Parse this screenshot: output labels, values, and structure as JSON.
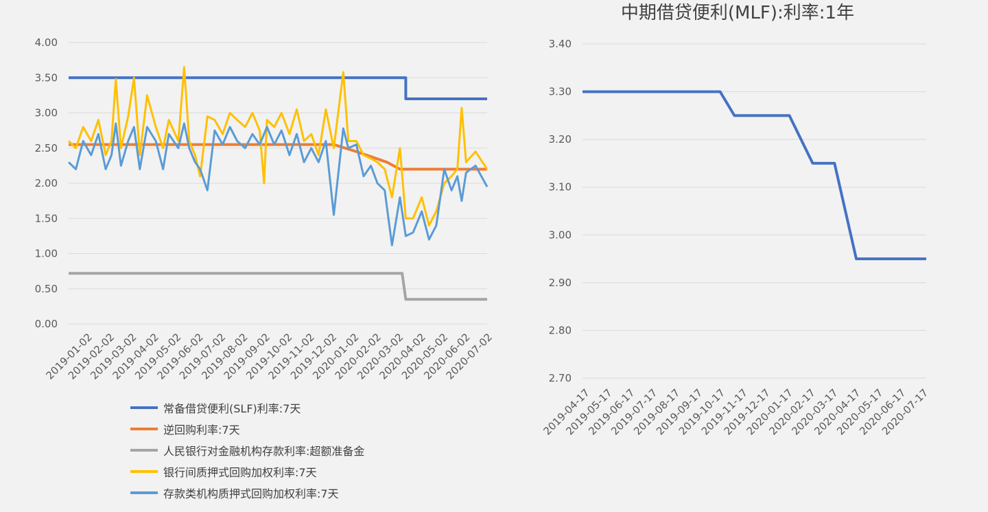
{
  "chart_data": [
    {
      "type": "line",
      "title": "",
      "xlabel": "",
      "ylabel": "",
      "ylim": [
        0,
        4
      ],
      "yticks": [
        "0.00",
        "0.50",
        "1.00",
        "1.50",
        "2.00",
        "2.50",
        "3.00",
        "3.50",
        "4.00"
      ],
      "xticks": [
        "2019-01-02",
        "2019-02-02",
        "2019-03-02",
        "2019-04-02",
        "2019-05-02",
        "2019-06-02",
        "2019-07-02",
        "2019-08-02",
        "2019-09-02",
        "2019-10-02",
        "2019-11-02",
        "2019-12-02",
        "2020-01-02",
        "2020-02-02",
        "2020-03-02",
        "2020-04-02",
        "2020-05-02",
        "2020-06-02",
        "2020-07-02"
      ],
      "grid": true,
      "legend_position": "bottom",
      "series": [
        {
          "name": "常备借贷便利(SLF)利率:7天",
          "color": "#4472c4",
          "points": [
            [
              "2019-01-02",
              3.5
            ],
            [
              "2020-04-10",
              3.5
            ],
            [
              "2020-04-10",
              3.2
            ],
            [
              "2020-07-31",
              3.2
            ]
          ]
        },
        {
          "name": "逆回购利率:7天",
          "color": "#ed7d31",
          "points": [
            [
              "2019-01-02",
              2.55
            ],
            [
              "2020-01-02",
              2.55
            ],
            [
              "2020-02-02",
              2.45
            ],
            [
              "2020-03-15",
              2.3
            ],
            [
              "2020-04-02",
              2.2
            ],
            [
              "2020-07-31",
              2.2
            ]
          ]
        },
        {
          "name": "人民银行对金融机构存款利率:超额准备金",
          "color": "#a5a5a5",
          "points": [
            [
              "2019-01-02",
              0.72
            ],
            [
              "2020-04-05",
              0.72
            ],
            [
              "2020-04-10",
              0.35
            ],
            [
              "2020-07-31",
              0.35
            ]
          ]
        },
        {
          "name": "银行间质押式回购加权利率:7天",
          "color": "#ffc000",
          "points": [
            [
              "2019-01-02",
              2.6
            ],
            [
              "2019-01-12",
              2.5
            ],
            [
              "2019-01-22",
              2.8
            ],
            [
              "2019-02-02",
              2.6
            ],
            [
              "2019-02-12",
              2.9
            ],
            [
              "2019-02-22",
              2.4
            ],
            [
              "2019-03-02",
              2.6
            ],
            [
              "2019-03-08",
              3.48
            ],
            [
              "2019-03-15",
              2.5
            ],
            [
              "2019-03-25",
              2.95
            ],
            [
              "2019-04-02",
              3.5
            ],
            [
              "2019-04-10",
              2.4
            ],
            [
              "2019-04-20",
              3.25
            ],
            [
              "2019-05-02",
              2.8
            ],
            [
              "2019-05-12",
              2.5
            ],
            [
              "2019-05-20",
              2.9
            ],
            [
              "2019-06-02",
              2.6
            ],
            [
              "2019-06-10",
              3.65
            ],
            [
              "2019-06-17",
              2.6
            ],
            [
              "2019-06-25",
              2.4
            ],
            [
              "2019-07-02",
              2.1
            ],
            [
              "2019-07-12",
              2.95
            ],
            [
              "2019-07-22",
              2.9
            ],
            [
              "2019-08-02",
              2.7
            ],
            [
              "2019-08-12",
              3.0
            ],
            [
              "2019-08-22",
              2.9
            ],
            [
              "2019-09-02",
              2.8
            ],
            [
              "2019-09-12",
              3.0
            ],
            [
              "2019-09-22",
              2.75
            ],
            [
              "2019-09-28",
              2.0
            ],
            [
              "2019-10-02",
              2.9
            ],
            [
              "2019-10-12",
              2.8
            ],
            [
              "2019-10-22",
              3.0
            ],
            [
              "2019-11-02",
              2.7
            ],
            [
              "2019-11-12",
              3.05
            ],
            [
              "2019-11-22",
              2.6
            ],
            [
              "2019-12-02",
              2.7
            ],
            [
              "2019-12-12",
              2.4
            ],
            [
              "2019-12-22",
              3.05
            ],
            [
              "2020-01-02",
              2.5
            ],
            [
              "2020-01-15",
              3.58
            ],
            [
              "2020-01-22",
              2.6
            ],
            [
              "2020-02-02",
              2.6
            ],
            [
              "2020-02-12",
              2.4
            ],
            [
              "2020-02-22",
              2.35
            ],
            [
              "2020-03-02",
              2.3
            ],
            [
              "2020-03-12",
              2.2
            ],
            [
              "2020-03-22",
              1.8
            ],
            [
              "2020-04-02",
              2.5
            ],
            [
              "2020-04-10",
              1.5
            ],
            [
              "2020-04-20",
              1.5
            ],
            [
              "2020-05-02",
              1.8
            ],
            [
              "2020-05-12",
              1.4
            ],
            [
              "2020-05-22",
              1.6
            ],
            [
              "2020-06-02",
              2.0
            ],
            [
              "2020-06-12",
              2.1
            ],
            [
              "2020-06-20",
              2.2
            ],
            [
              "2020-06-26",
              3.07
            ],
            [
              "2020-07-02",
              2.3
            ],
            [
              "2020-07-15",
              2.45
            ],
            [
              "2020-07-31",
              2.2
            ]
          ]
        },
        {
          "name": "存款类机构质押式回购加权利率:7天",
          "color": "#5b9bd5",
          "points": [
            [
              "2019-01-02",
              2.3
            ],
            [
              "2019-01-12",
              2.2
            ],
            [
              "2019-01-22",
              2.6
            ],
            [
              "2019-02-02",
              2.4
            ],
            [
              "2019-02-12",
              2.7
            ],
            [
              "2019-02-22",
              2.2
            ],
            [
              "2019-03-02",
              2.4
            ],
            [
              "2019-03-08",
              2.85
            ],
            [
              "2019-03-15",
              2.25
            ],
            [
              "2019-03-25",
              2.6
            ],
            [
              "2019-04-02",
              2.8
            ],
            [
              "2019-04-10",
              2.2
            ],
            [
              "2019-04-20",
              2.8
            ],
            [
              "2019-05-02",
              2.6
            ],
            [
              "2019-05-12",
              2.2
            ],
            [
              "2019-05-20",
              2.7
            ],
            [
              "2019-06-02",
              2.5
            ],
            [
              "2019-06-10",
              2.85
            ],
            [
              "2019-06-17",
              2.5
            ],
            [
              "2019-06-25",
              2.3
            ],
            [
              "2019-07-02",
              2.2
            ],
            [
              "2019-07-12",
              1.9
            ],
            [
              "2019-07-22",
              2.75
            ],
            [
              "2019-08-02",
              2.55
            ],
            [
              "2019-08-12",
              2.8
            ],
            [
              "2019-08-22",
              2.6
            ],
            [
              "2019-09-02",
              2.5
            ],
            [
              "2019-09-12",
              2.7
            ],
            [
              "2019-09-22",
              2.55
            ],
            [
              "2019-10-02",
              2.8
            ],
            [
              "2019-10-12",
              2.55
            ],
            [
              "2019-10-22",
              2.75
            ],
            [
              "2019-11-02",
              2.4
            ],
            [
              "2019-11-12",
              2.7
            ],
            [
              "2019-11-22",
              2.3
            ],
            [
              "2019-12-02",
              2.5
            ],
            [
              "2019-12-12",
              2.3
            ],
            [
              "2019-12-22",
              2.6
            ],
            [
              "2020-01-02",
              1.55
            ],
            [
              "2020-01-15",
              2.78
            ],
            [
              "2020-01-22",
              2.5
            ],
            [
              "2020-02-02",
              2.55
            ],
            [
              "2020-02-12",
              2.1
            ],
            [
              "2020-02-22",
              2.25
            ],
            [
              "2020-03-02",
              2.0
            ],
            [
              "2020-03-12",
              1.9
            ],
            [
              "2020-03-22",
              1.12
            ],
            [
              "2020-04-02",
              1.8
            ],
            [
              "2020-04-10",
              1.25
            ],
            [
              "2020-04-20",
              1.3
            ],
            [
              "2020-05-02",
              1.6
            ],
            [
              "2020-05-12",
              1.2
            ],
            [
              "2020-05-22",
              1.4
            ],
            [
              "2020-06-02",
              2.2
            ],
            [
              "2020-06-12",
              1.9
            ],
            [
              "2020-06-20",
              2.1
            ],
            [
              "2020-06-26",
              1.75
            ],
            [
              "2020-07-02",
              2.15
            ],
            [
              "2020-07-15",
              2.25
            ],
            [
              "2020-07-31",
              1.95
            ]
          ]
        }
      ]
    },
    {
      "type": "line",
      "title": "中期借贷便利(MLF):利率:1年",
      "xlabel": "",
      "ylabel": "",
      "ylim": [
        2.7,
        3.4
      ],
      "yticks": [
        "2.70",
        "2.80",
        "2.90",
        "3.00",
        "3.10",
        "3.20",
        "3.30",
        "3.40"
      ],
      "xticks": [
        "2019-04-17",
        "2019-05-17",
        "2019-06-17",
        "2019-07-17",
        "2019-08-17",
        "2019-09-17",
        "2019-10-17",
        "2019-11-17",
        "2019-12-17",
        "2020-01-17",
        "2020-02-17",
        "2020-03-17",
        "2020-04-17",
        "2020-05-17",
        "2020-06-17",
        "2020-07-17"
      ],
      "grid": true,
      "series": [
        {
          "name": "",
          "color": "#4472c4",
          "points": [
            [
              "2019-04-17",
              3.3
            ],
            [
              "2019-10-17",
              3.3
            ],
            [
              "2019-11-05",
              3.25
            ],
            [
              "2020-01-17",
              3.25
            ],
            [
              "2020-02-17",
              3.15
            ],
            [
              "2020-03-17",
              3.15
            ],
            [
              "2020-04-15",
              2.95
            ],
            [
              "2020-07-17",
              2.95
            ]
          ]
        }
      ]
    }
  ]
}
